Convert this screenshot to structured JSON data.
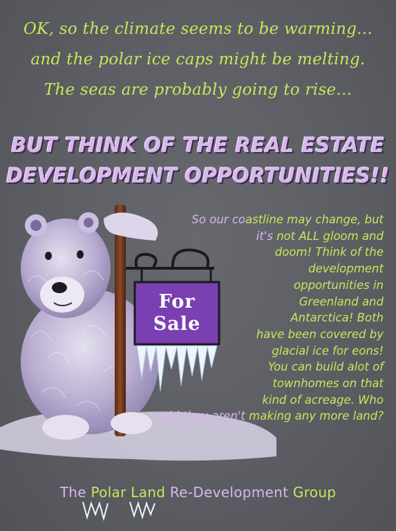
{
  "intro_lines": [
    "OK, so the climate seems to be warming...",
    "and the polar ice caps might be melting.",
    "The seas are probably going to rise..."
  ],
  "headline_lines": [
    "BUT THINK OF THE REAL ESTATE",
    "DEVELOPMENT OPPORTUNITIES!!"
  ],
  "sign": {
    "line1": "For",
    "line2": "Sale"
  },
  "body": {
    "lead_purple": "So our co",
    "lead_green": "astline may change, but",
    "line2_purple": "it's",
    "line2_green": " not ALL gloom and",
    "lines": [
      "doom! Think of the",
      "development",
      "opportunities in",
      "Greenland and",
      "Antarctica! Both",
      "have been covered by",
      "glacial ice for eons!",
      "You can build alot of",
      "townhomes on that",
      "kind of acreage. Who"
    ],
    "last_purple": "said they aren't",
    "last_green": " making any more land?"
  },
  "footer": {
    "part1": "The ",
    "part2": "Polar Land",
    "part3": " Re-Development ",
    "part4": "Group"
  },
  "colors": {
    "background": "#5c5e64",
    "text_green": "#c9e65a",
    "text_purple": "#d8b6ee",
    "sign_purple": "#7a3fb0"
  }
}
